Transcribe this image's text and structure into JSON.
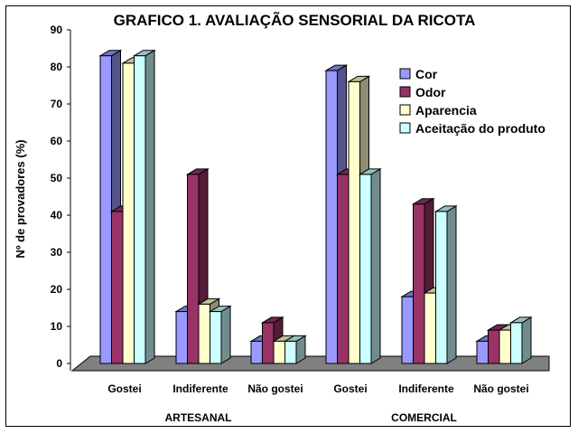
{
  "chart_data": {
    "type": "bar",
    "title": "GRAFICO 1. AVALIAÇÃO SENSORIAL DA RICOTA",
    "ylabel": "Nº de provadores (%)",
    "xlabel": "",
    "ylim": [
      0,
      90
    ],
    "yticks": [
      "0",
      "10",
      "20",
      "30",
      "40",
      "50",
      "60",
      "70",
      "80",
      "90"
    ],
    "categories": [
      "Gostei",
      "Indiferente",
      "Não gostei",
      "Gostei",
      "Indiferente",
      "Não gostei"
    ],
    "groups": [
      {
        "label": "ARTESANAL",
        "span": [
          0,
          2
        ]
      },
      {
        "label": "COMERCIAL",
        "span": [
          3,
          5
        ]
      }
    ],
    "series": [
      {
        "name": "Cor",
        "color": "#9999ff",
        "values": [
          83,
          14,
          6,
          79,
          18,
          6
        ]
      },
      {
        "name": "Odor",
        "color": "#993366",
        "values": [
          41,
          51,
          11,
          51,
          43,
          9
        ]
      },
      {
        "name": "Aparencia",
        "color": "#ffffcc",
        "values": [
          81,
          16,
          6,
          76,
          19,
          9
        ]
      },
      {
        "name": "Aceitação do produto",
        "color": "#ccffff",
        "values": [
          83,
          14,
          6,
          51,
          41,
          11
        ]
      }
    ],
    "legend_position": "right",
    "grid": false,
    "floor_color": "#808080"
  }
}
